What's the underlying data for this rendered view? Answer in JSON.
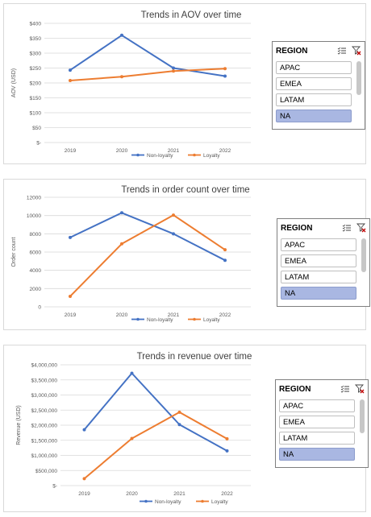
{
  "colors": {
    "non_loyalty": "#4472c4",
    "loyalty": "#ed7d31",
    "grid": "#d9d9d9",
    "axis_text": "#595959",
    "selected": "#a9b7e2"
  },
  "slicers": [
    {
      "title": "REGION",
      "filter_icon": "multi-select-icon",
      "clear_icon": "clear-filter-icon",
      "items": [
        {
          "label": "APAC",
          "selected": false
        },
        {
          "label": "EMEA",
          "selected": false
        },
        {
          "label": "LATAM",
          "selected": false
        },
        {
          "label": "NA",
          "selected": true
        }
      ]
    },
    {
      "title": "REGION",
      "filter_icon": "multi-select-icon",
      "clear_icon": "clear-filter-icon",
      "items": [
        {
          "label": "APAC",
          "selected": false
        },
        {
          "label": "EMEA",
          "selected": false
        },
        {
          "label": "LATAM",
          "selected": false
        },
        {
          "label": "NA",
          "selected": true
        }
      ]
    },
    {
      "title": "REGION",
      "filter_icon": "multi-select-icon",
      "clear_icon": "clear-filter-icon",
      "items": [
        {
          "label": "APAC",
          "selected": false
        },
        {
          "label": "EMEA",
          "selected": false
        },
        {
          "label": "LATAM",
          "selected": false
        },
        {
          "label": "NA",
          "selected": true
        }
      ]
    }
  ],
  "chart_data": [
    {
      "type": "line",
      "title": "Trends in AOV over time",
      "xlabel": "",
      "ylabel": "AOV (USD)",
      "categories": [
        "2019",
        "2020",
        "2021",
        "2022"
      ],
      "ylim": [
        0,
        400
      ],
      "yticks": [
        0,
        50,
        100,
        150,
        200,
        250,
        300,
        350,
        400
      ],
      "ytick_labels": [
        "$-",
        "$50",
        "$100",
        "$150",
        "$200",
        "$250",
        "$300",
        "$350",
        "$400"
      ],
      "grid": true,
      "legend": "bottom",
      "series": [
        {
          "name": "Non-loyalty",
          "values": [
            243,
            360,
            250,
            223
          ]
        },
        {
          "name": "Loyalty",
          "values": [
            208,
            221,
            240,
            248
          ]
        }
      ]
    },
    {
      "type": "line",
      "title": "Trends in order count over time",
      "xlabel": "",
      "ylabel": "Order count",
      "categories": [
        "2019",
        "2020",
        "2021",
        "2022"
      ],
      "ylim": [
        0,
        12000
      ],
      "yticks": [
        0,
        2000,
        4000,
        6000,
        8000,
        10000,
        12000
      ],
      "ytick_labels": [
        "0",
        "2000",
        "4000",
        "6000",
        "8000",
        "10000",
        "12000"
      ],
      "grid": true,
      "legend": "bottom",
      "series": [
        {
          "name": "Non-loyalty",
          "values": [
            7600,
            10300,
            8000,
            5100
          ]
        },
        {
          "name": "Loyalty",
          "values": [
            1150,
            6900,
            10050,
            6250
          ]
        }
      ]
    },
    {
      "type": "line",
      "title": "Trends in revenue over time",
      "xlabel": "",
      "ylabel": "Revenue (USD)",
      "categories": [
        "2019",
        "2020",
        "2021",
        "2022"
      ],
      "ylim": [
        0,
        4000000
      ],
      "yticks": [
        0,
        500000,
        1000000,
        1500000,
        2000000,
        2500000,
        3000000,
        3500000,
        4000000
      ],
      "ytick_labels": [
        "$-",
        "$500,000",
        "$1,000,000",
        "$1,500,000",
        "$2,000,000",
        "$2,500,000",
        "$3,000,000",
        "$3,500,000",
        "$4,000,000"
      ],
      "grid": true,
      "legend": "bottom",
      "series": [
        {
          "name": "Non-loyalty",
          "values": [
            1850000,
            3720000,
            2020000,
            1150000
          ]
        },
        {
          "name": "Loyalty",
          "values": [
            230000,
            1560000,
            2430000,
            1550000
          ]
        }
      ]
    }
  ]
}
